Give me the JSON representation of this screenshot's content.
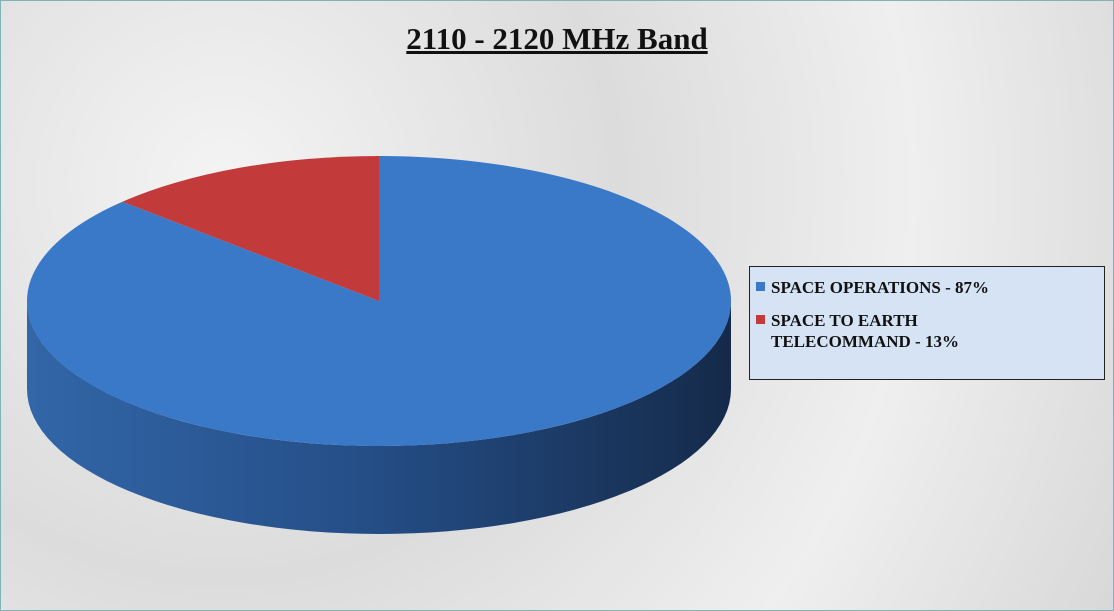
{
  "chart_data": {
    "type": "pie",
    "title": "2110 - 2120 MHz Band",
    "categories": [
      "SPACE OPERATIONS - 87%",
      "SPACE TO EARTH TELECOMMAND - 13%"
    ],
    "values": [
      87,
      13
    ],
    "colors": [
      "#3a78c8",
      "#c23a3a"
    ],
    "legend": "right"
  }
}
